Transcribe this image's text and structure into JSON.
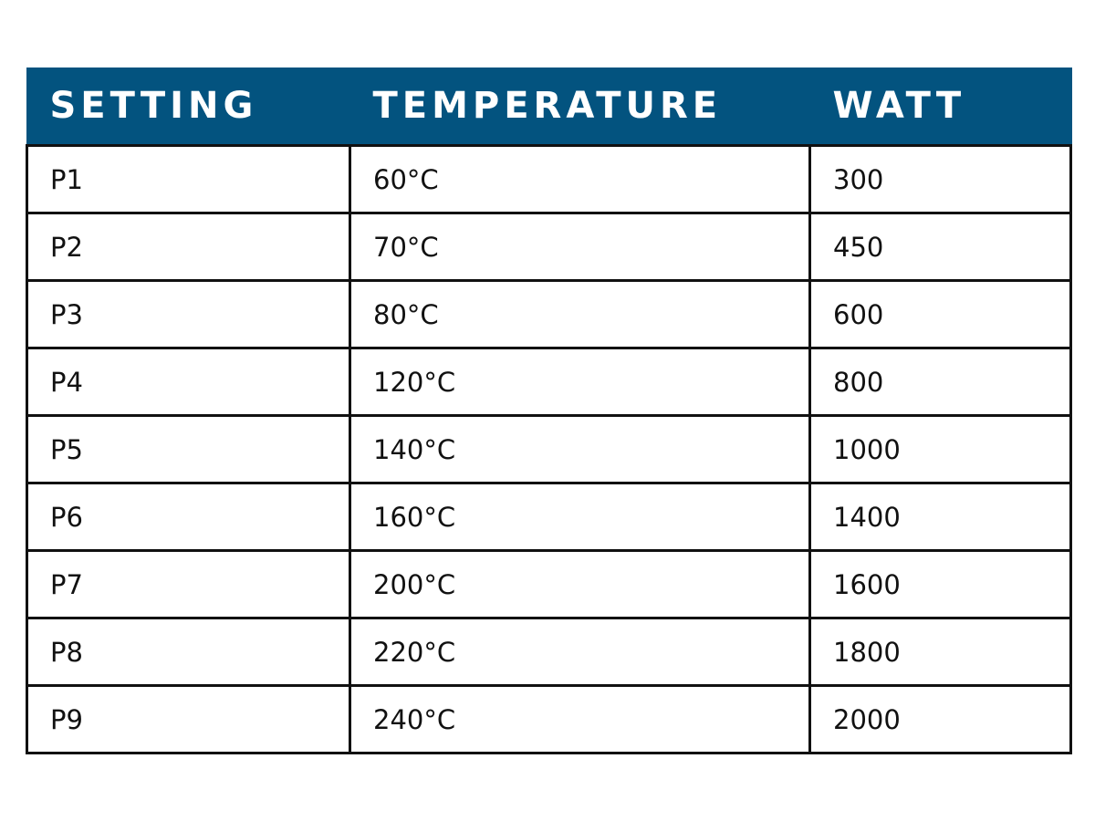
{
  "table": {
    "header": [
      "SETTING",
      "TEMPERATURE",
      "WATT"
    ],
    "rows": [
      [
        "P1",
        "60°C",
        "300"
      ],
      [
        "P2",
        "70°C",
        "450"
      ],
      [
        "P3",
        "80°C",
        "600"
      ],
      [
        "P4",
        "120°C",
        "800"
      ],
      [
        "P5",
        "140°C",
        "1000"
      ],
      [
        "P6",
        "160°C",
        "1400"
      ],
      [
        "P7",
        "200°C",
        "1600"
      ],
      [
        "P8",
        "220°C",
        "1800"
      ],
      [
        "P9",
        "240°C",
        "2000"
      ]
    ]
  }
}
